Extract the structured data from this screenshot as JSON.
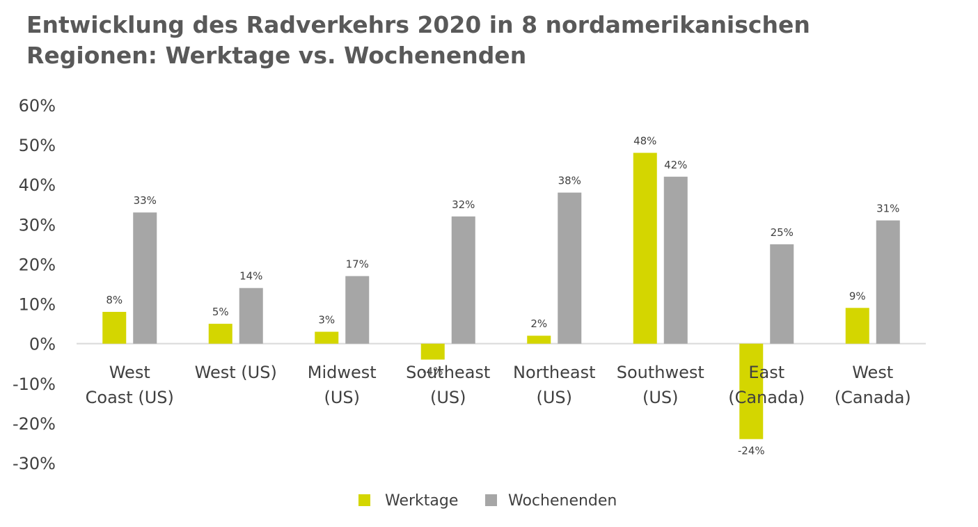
{
  "chart_data": {
    "type": "bar",
    "title": "Entwicklung des Radverkehrs 2020 in 8 nordamerikanischen Regionen: Werktage vs. Wochenenden",
    "categories": [
      [
        "West",
        "Coast (US)"
      ],
      [
        "West (US)"
      ],
      [
        "Midwest",
        "(US)"
      ],
      [
        "Southeast",
        "(US)"
      ],
      [
        "Northeast",
        "(US)"
      ],
      [
        "Southwest",
        "(US)"
      ],
      [
        "East",
        "(Canada)"
      ],
      [
        "West",
        "(Canada)"
      ]
    ],
    "series": [
      {
        "name": "Werktage",
        "color": "#d4d600",
        "values": [
          8,
          5,
          3,
          -4,
          2,
          48,
          -24,
          9
        ],
        "labels": [
          "8%",
          "5%",
          "3%",
          "-4%",
          "2%",
          "48%",
          "-24%",
          "9%"
        ]
      },
      {
        "name": "Wochenenden",
        "color": "#a6a6a6",
        "values": [
          33,
          14,
          17,
          32,
          38,
          42,
          25,
          31
        ],
        "labels": [
          "33%",
          "14%",
          "17%",
          "32%",
          "38%",
          "42%",
          "25%",
          "31%"
        ]
      }
    ],
    "ylim": [
      -30,
      60
    ],
    "yticks": [
      60,
      50,
      40,
      30,
      20,
      10,
      0,
      -10,
      -20,
      -30
    ],
    "ytick_labels": [
      "60%",
      "50%",
      "40%",
      "30%",
      "20%",
      "10%",
      "0%",
      "-10%",
      "-20%",
      "-30%"
    ],
    "grid": false,
    "legend": "bottom"
  }
}
